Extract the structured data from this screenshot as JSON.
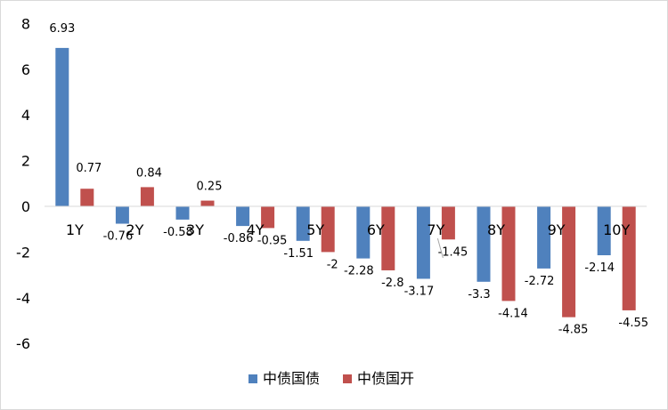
{
  "chart_data": {
    "type": "bar",
    "title": "",
    "xlabel": "",
    "ylabel": "",
    "categories": [
      "1Y",
      "2Y",
      "3Y",
      "4Y",
      "5Y",
      "6Y",
      "7Y",
      "8Y",
      "9Y",
      "10Y"
    ],
    "series": [
      {
        "name": "中债国债",
        "color": "#4f81bd",
        "values": [
          6.93,
          -0.76,
          -0.58,
          -0.86,
          -1.51,
          -2.28,
          -3.17,
          -3.3,
          -2.72,
          -2.14
        ]
      },
      {
        "name": "中债国开",
        "color": "#c0504d",
        "values": [
          0.77,
          0.84,
          0.25,
          -0.95,
          -2,
          -2.8,
          -1.45,
          -4.14,
          -4.85,
          -4.55
        ]
      }
    ],
    "ylim": [
      -6,
      8
    ],
    "yticks": [
      8,
      6,
      4,
      2,
      0,
      -2,
      -4,
      -6
    ],
    "grid": false,
    "legend_position": "bottom"
  }
}
